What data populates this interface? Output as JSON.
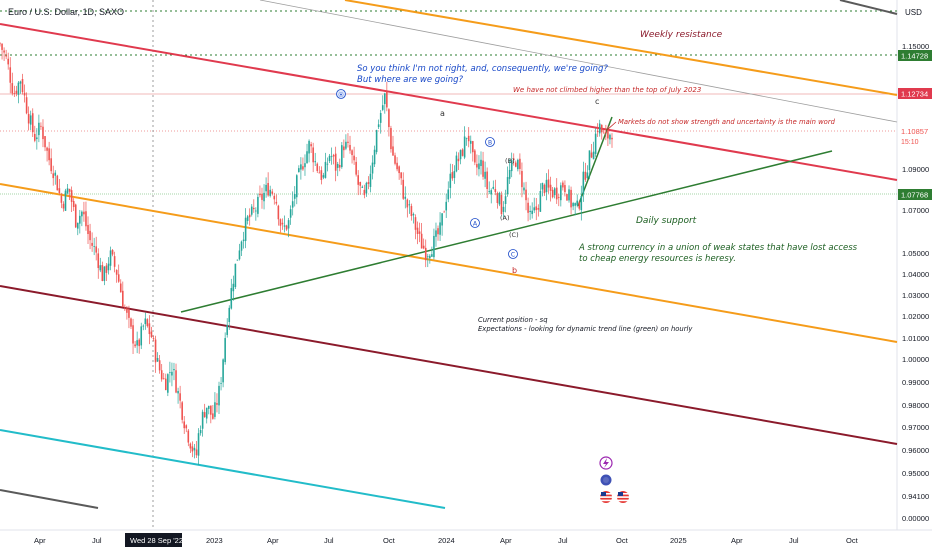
{
  "header": {
    "symbol_title": "Euro / U.S. Dollar, 1D, SAXO",
    "currency": "USD"
  },
  "colors": {
    "up": "#26a69a",
    "down": "#ef5350",
    "trend_red": "#e03a4e",
    "trend_orange": "#f59c1a",
    "trend_darkred": "#8b1a2b",
    "trend_green": "#2e7d32",
    "trend_cyan": "#22bcc9",
    "trend_gray": "#5a5a5a",
    "label_blue": "#1848c8",
    "label_red": "#c62828",
    "label_green": "#1b5e20"
  },
  "chart_data": {
    "type": "candlestick",
    "x_tick_labels": [
      "Apr",
      "Jul",
      "Wed 28 Sep '22",
      "2023",
      "Apr",
      "Jul",
      "Oct",
      "2024",
      "Apr",
      "Jul",
      "Oct",
      "2025",
      "Apr",
      "Jul",
      "Oct"
    ],
    "y_tick_labels": [
      "1.15000",
      "1.09000",
      "1.07000",
      "1.05000",
      "1.04000",
      "1.03000",
      "1.02000",
      "1.01000",
      "1.00000",
      "0.99000",
      "0.98000",
      "0.97000",
      "0.96000",
      "0.95000",
      "0.94100",
      "0.00000"
    ],
    "price_tags": [
      {
        "value": "1.14728",
        "color": "#2e7d32"
      },
      {
        "value": "1.12734",
        "color": "#e03a4e"
      },
      {
        "value": "1.10857",
        "color": "#ef5350",
        "sub": "15:10"
      },
      {
        "value": "1.07768",
        "color": "#2e7d32"
      }
    ],
    "series": [
      {
        "name": "EURUSD",
        "close_path": [
          [
            0,
            1.148
          ],
          [
            2,
            1.14
          ],
          [
            4,
            1.125
          ],
          [
            6,
            1.132
          ],
          [
            8,
            1.117
          ],
          [
            10,
            1.105
          ],
          [
            12,
            1.11
          ],
          [
            14,
            1.096
          ],
          [
            16,
            1.088
          ],
          [
            18,
            1.074
          ],
          [
            20,
            1.082
          ],
          [
            22,
            1.067
          ],
          [
            24,
            1.071
          ],
          [
            26,
            1.058
          ],
          [
            28,
            1.052
          ],
          [
            30,
            1.04
          ],
          [
            32,
            1.051
          ],
          [
            34,
            1.043
          ],
          [
            36,
            1.028
          ],
          [
            38,
            1.016
          ],
          [
            40,
            1.008
          ],
          [
            42,
            1.02
          ],
          [
            44,
            1.014
          ],
          [
            46,
            1.0
          ],
          [
            48,
            0.992
          ],
          [
            50,
            1.0
          ],
          [
            52,
            0.986
          ],
          [
            54,
            0.972
          ],
          [
            56,
            0.962
          ],
          [
            57,
            0.957
          ],
          [
            58,
            0.972
          ],
          [
            60,
            0.982
          ],
          [
            62,
            0.976
          ],
          [
            64,
            0.99
          ],
          [
            66,
            1.022
          ],
          [
            68,
            1.042
          ],
          [
            70,
            1.058
          ],
          [
            72,
            1.067
          ],
          [
            74,
            1.071
          ],
          [
            76,
            1.077
          ],
          [
            78,
            1.082
          ],
          [
            80,
            1.079
          ],
          [
            82,
            1.062
          ],
          [
            84,
            1.066
          ],
          [
            86,
            1.082
          ],
          [
            88,
            1.093
          ],
          [
            90,
            1.102
          ],
          [
            92,
            1.092
          ],
          [
            94,
            1.086
          ],
          [
            96,
            1.098
          ],
          [
            98,
            1.09
          ],
          [
            100,
            1.102
          ],
          [
            102,
            1.098
          ],
          [
            104,
            1.084
          ],
          [
            106,
            1.076
          ],
          [
            108,
            1.092
          ],
          [
            110,
            1.112
          ],
          [
            112,
            1.124
          ],
          [
            114,
            1.098
          ],
          [
            116,
            1.088
          ],
          [
            118,
            1.075
          ],
          [
            120,
            1.068
          ],
          [
            122,
            1.058
          ],
          [
            124,
            1.052
          ],
          [
            126,
            1.056
          ],
          [
            128,
            1.062
          ],
          [
            130,
            1.08
          ],
          [
            132,
            1.092
          ],
          [
            134,
            1.096
          ],
          [
            136,
            1.108
          ],
          [
            138,
            1.09
          ],
          [
            140,
            1.093
          ],
          [
            142,
            1.08
          ],
          [
            144,
            1.082
          ],
          [
            146,
            1.072
          ],
          [
            148,
            1.088
          ],
          [
            150,
            1.095
          ],
          [
            152,
            1.084
          ],
          [
            154,
            1.067
          ],
          [
            156,
            1.072
          ],
          [
            158,
            1.083
          ],
          [
            160,
            1.08
          ],
          [
            162,
            1.08
          ],
          [
            164,
            1.084
          ],
          [
            166,
            1.075
          ],
          [
            168,
            1.072
          ],
          [
            170,
            1.088
          ],
          [
            172,
            1.098
          ],
          [
            174,
            1.111
          ],
          [
            176,
            1.104
          ],
          [
            178,
            1.108
          ]
        ]
      }
    ],
    "trendlines": [
      {
        "name": "red resistance",
        "color": "#e03a4e"
      },
      {
        "name": "orange channel upper",
        "color": "#f59c1a"
      },
      {
        "name": "orange channel lower",
        "color": "#f59c1a"
      },
      {
        "name": "dark red",
        "color": "#8b1a2b"
      },
      {
        "name": "green support",
        "color": "#2e7d32"
      },
      {
        "name": "cyan",
        "color": "#22bcc9"
      },
      {
        "name": "gray",
        "color": "#5a5a5a"
      }
    ],
    "annotations": {
      "weekly_resistance": "Weekly resistance",
      "question_line1": "So you think I'm not right, and, consequently, we're going?",
      "question_line2": "But where are we going?",
      "july_top": "We have not climbed higher than the top of July 2023",
      "markets_note": "Markets do not show strength and uncertainty is the main word",
      "daily_support": "Daily support",
      "strong_currency_line1": "A strong currency in a union of weak states that have lost access",
      "strong_currency_line2": "to cheap energy resources is heresy.",
      "position_line1": "Current position - sq",
      "position_line2": "Expectations - looking for dynamic trend line (green) on hourly"
    },
    "wave_labels": {
      "top_circle": "⦿",
      "a": "a",
      "c": "c",
      "A": "A",
      "B_circle": "B",
      "B_paren": "(B)",
      "A_paren": "(A)",
      "C_paren": "(C)",
      "C_circle": "C",
      "b": "b"
    }
  }
}
